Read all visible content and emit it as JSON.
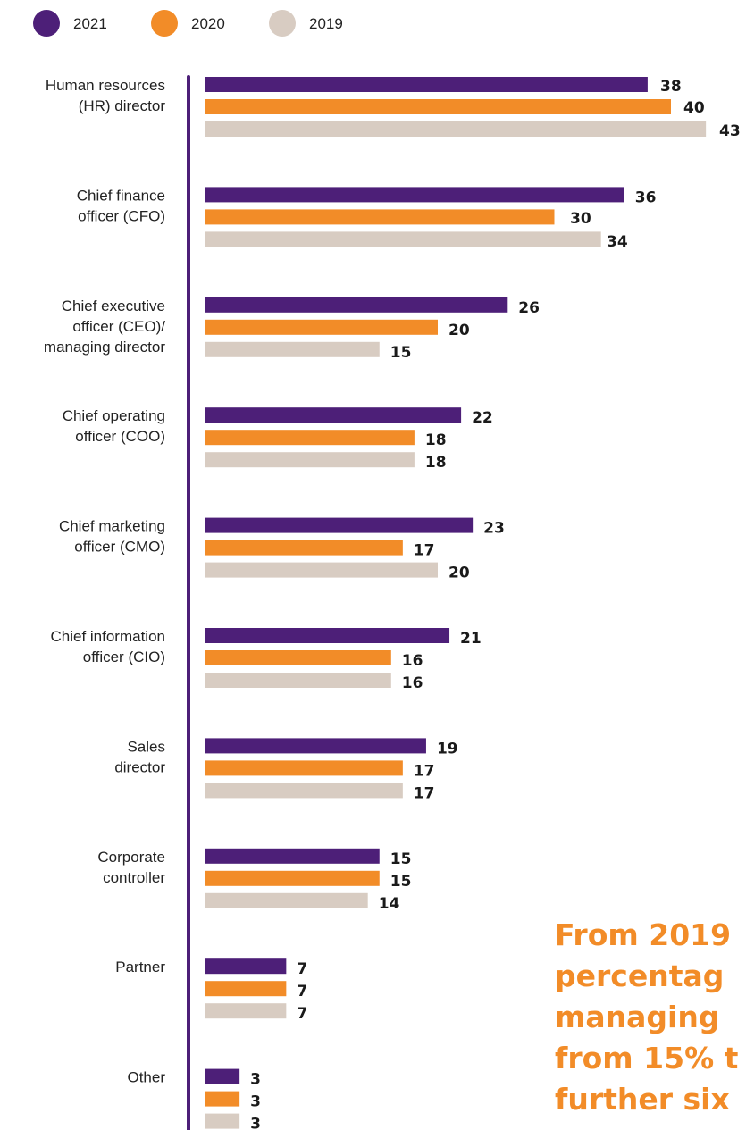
{
  "colors": {
    "2021": "#4d1f78",
    "2020": "#f28c28",
    "2019": "#d8ccc2",
    "axis": "#4d1f78",
    "callout": "#f28c28"
  },
  "chart_data": {
    "type": "bar",
    "orientation": "horizontal",
    "legend_position": "top-left",
    "grid": false,
    "xlim": [
      0,
      45
    ],
    "categories": [
      [
        "Human resources",
        "(HR) director"
      ],
      [
        "Chief finance",
        "officer (CFO)"
      ],
      [
        "Chief executive",
        "officer (CEO)/",
        "managing director"
      ],
      [
        "Chief operating",
        "officer (COO)"
      ],
      [
        "Chief marketing",
        "officer (CMO)"
      ],
      [
        "Chief information",
        "officer (CIO)"
      ],
      [
        "Sales",
        "director"
      ],
      [
        "Corporate",
        "controller"
      ],
      [
        "Partner"
      ],
      [
        "Other"
      ]
    ],
    "series": [
      {
        "name": "2021",
        "values": [
          38,
          36,
          26,
          22,
          23,
          21,
          19,
          15,
          7,
          3
        ]
      },
      {
        "name": "2020",
        "values": [
          40,
          30,
          20,
          18,
          17,
          16,
          17,
          15,
          7,
          3
        ]
      },
      {
        "name": "2019",
        "values": [
          43,
          34,
          15,
          18,
          20,
          16,
          17,
          14,
          7,
          3
        ]
      }
    ]
  },
  "callout": {
    "lines": [
      "From 2019",
      "percentag",
      "managing",
      "from 15% t",
      "further six"
    ]
  }
}
